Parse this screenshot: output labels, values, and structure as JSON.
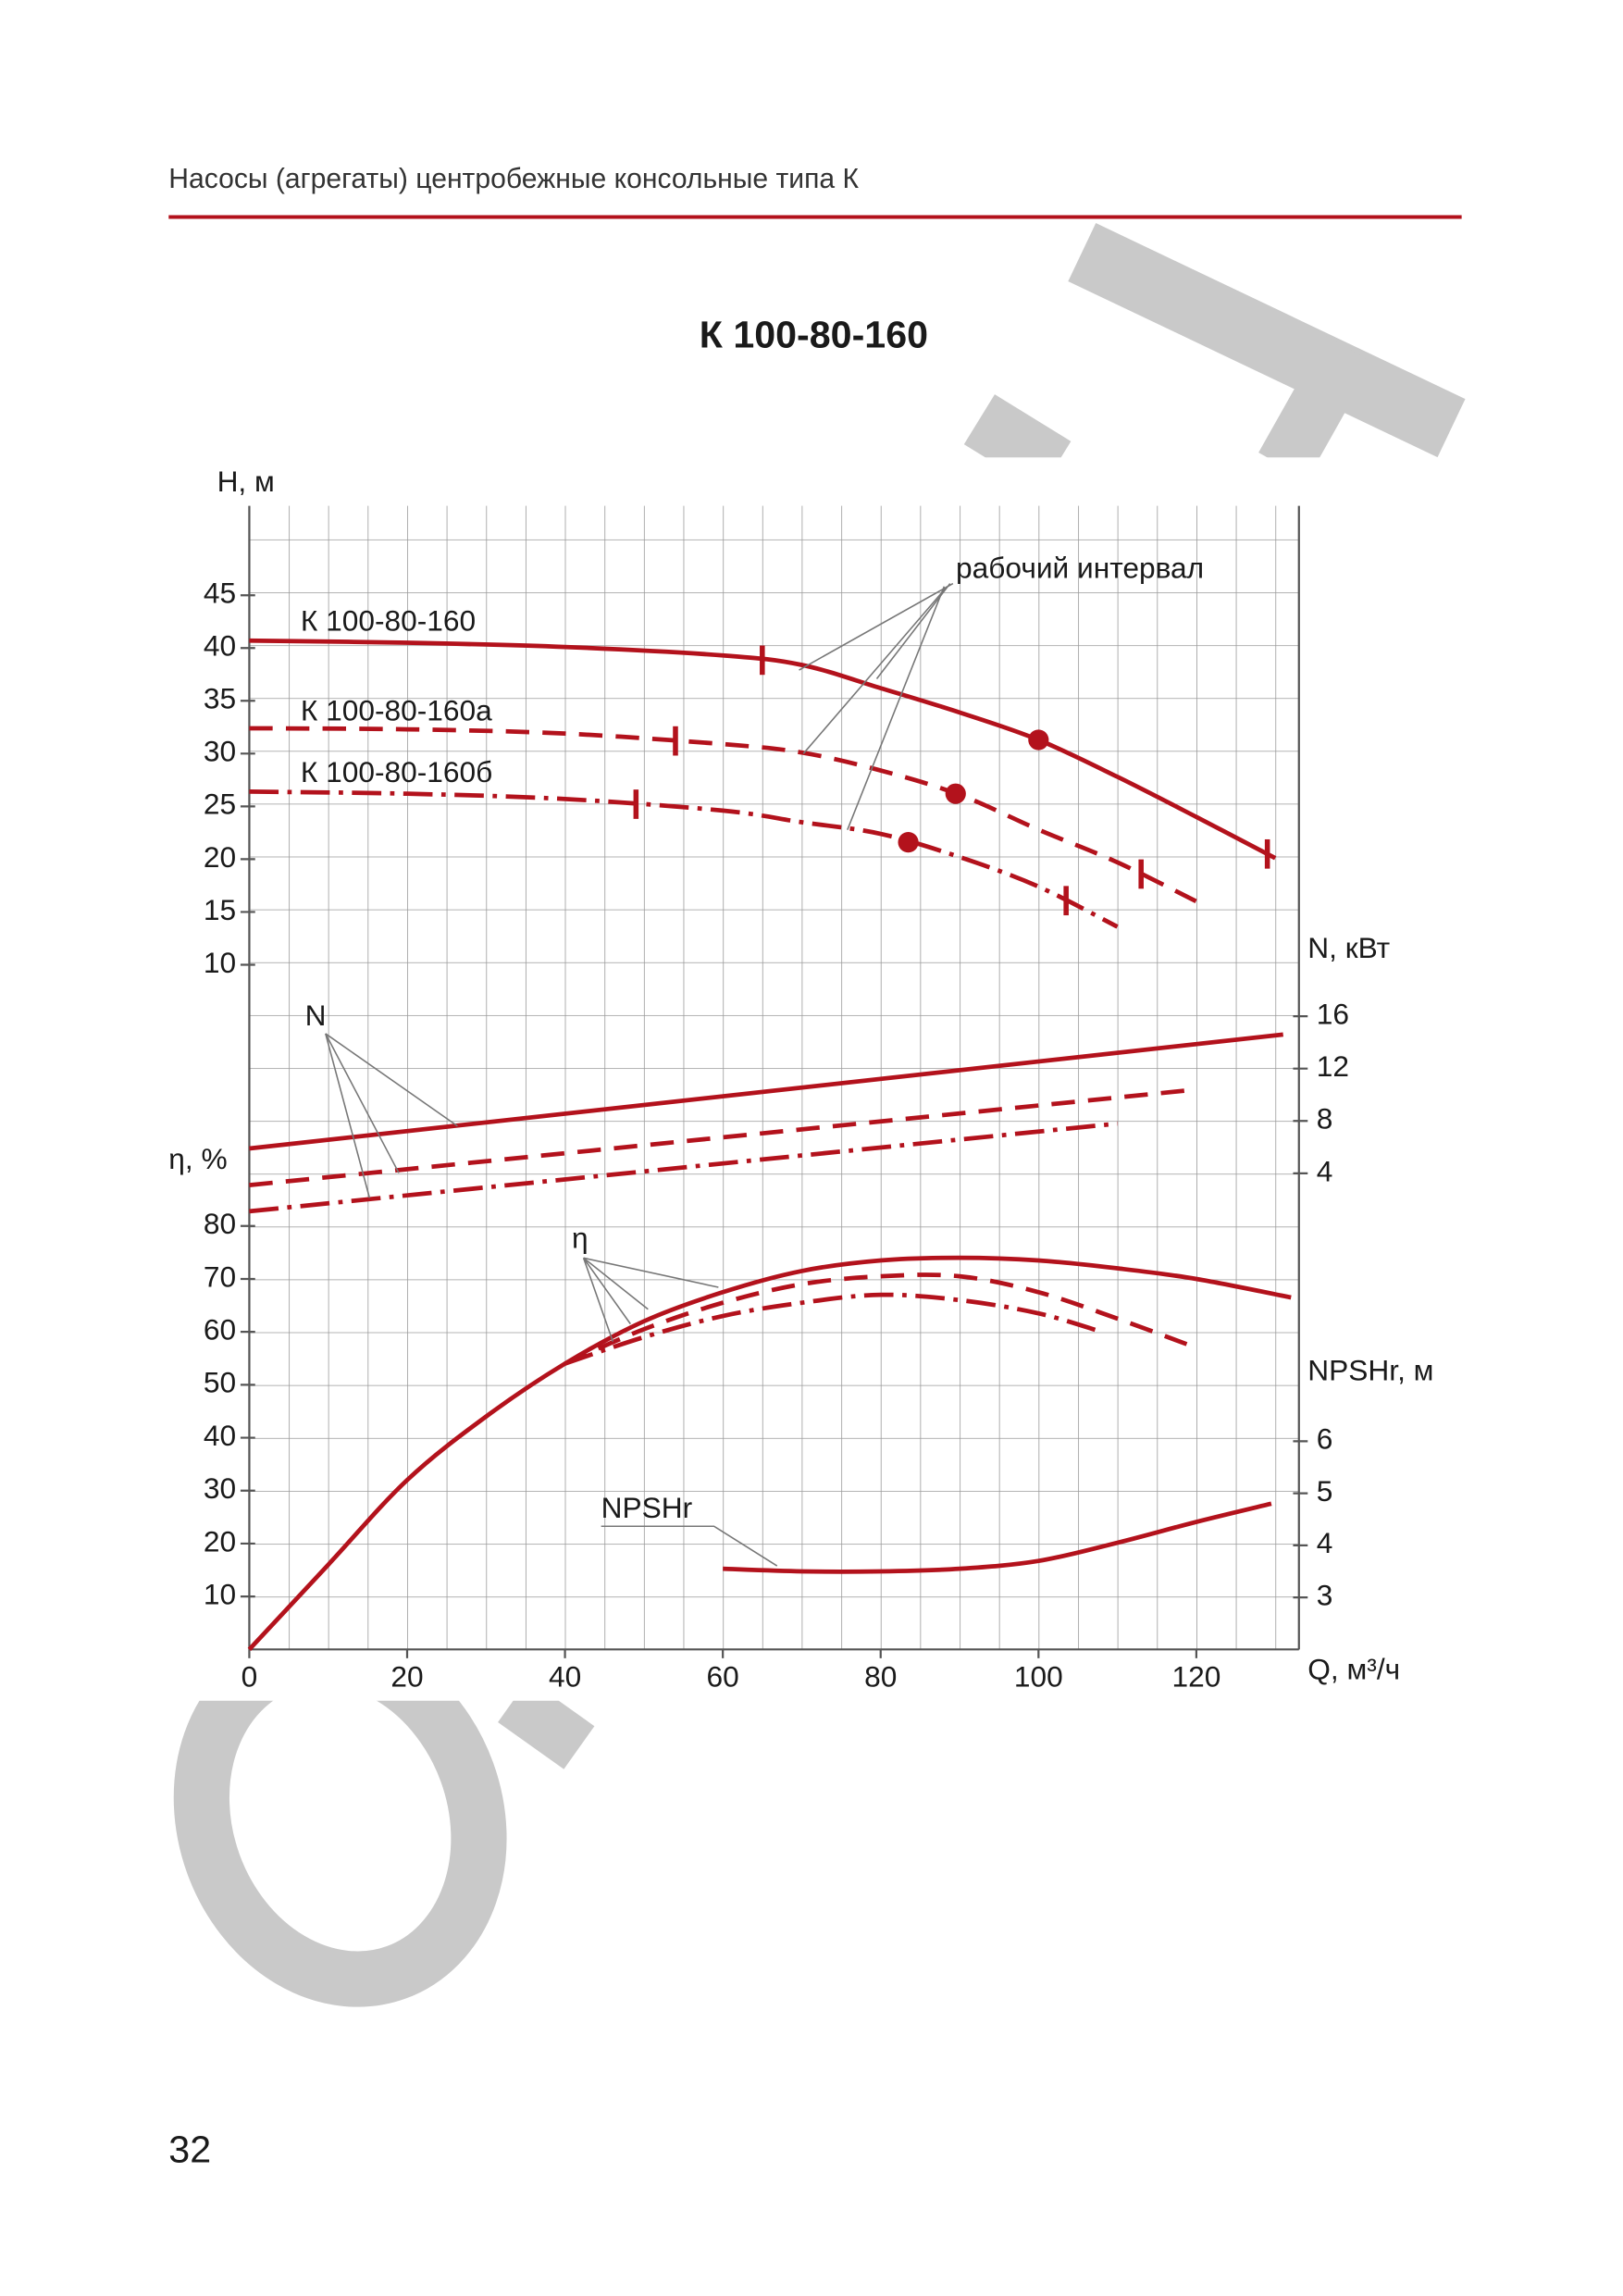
{
  "header": {
    "text": "Насосы (агрегаты) центробежные консольные типа К"
  },
  "title": "К 100-80-160",
  "page_number": "32",
  "chart_data": {
    "type": "line",
    "x_axis": {
      "title": "Q, м³/ч",
      "lim": [
        0,
        133
      ],
      "ticks": [
        0,
        20,
        40,
        60,
        80,
        100,
        120
      ]
    },
    "y_axes": {
      "H": {
        "title": "H, м",
        "lim": [
          0,
          50
        ],
        "ticks": [
          10,
          15,
          20,
          25,
          30,
          35,
          40,
          45
        ]
      },
      "N": {
        "title": "N, кВт",
        "lim": [
          0,
          20
        ],
        "ticks": [
          4,
          8,
          12,
          16
        ]
      },
      "eta": {
        "title": "η, %",
        "lim": [
          0,
          100
        ],
        "ticks": [
          10,
          20,
          30,
          40,
          50,
          60,
          70,
          80
        ]
      },
      "npsh": {
        "title": "NPSHr, м",
        "lim": [
          2,
          7
        ],
        "ticks": [
          3,
          4,
          5,
          6
        ]
      }
    },
    "series": [
      {
        "name": "К 100-80-160",
        "axis": "H",
        "color": "#b3121c",
        "dash": "solid",
        "x": [
          0,
          20,
          40,
          60,
          70,
          80,
          90,
          100,
          110,
          120,
          130
        ],
        "values": [
          40.7,
          40.5,
          40.1,
          39.3,
          38.4,
          36.2,
          33.9,
          31.3,
          27.8,
          24,
          20.1
        ],
        "work_interval": [
          65,
          129
        ],
        "bep": [
          100,
          31.3
        ]
      },
      {
        "name": "К 100-80-160а",
        "axis": "H",
        "color": "#b3121c",
        "dash": "dashed",
        "x": [
          0,
          20,
          40,
          60,
          70,
          80,
          90,
          100,
          110,
          120
        ],
        "values": [
          32.4,
          32.3,
          31.9,
          30.9,
          30.1,
          28.4,
          26.1,
          22.8,
          19.7,
          16
        ],
        "work_interval": [
          54,
          113
        ],
        "bep": [
          89.5,
          26.2
        ]
      },
      {
        "name": "К 100-80-160б",
        "axis": "H",
        "color": "#b3121c",
        "dash": "dashdot",
        "x": [
          0,
          20,
          40,
          60,
          70,
          80,
          90,
          100,
          110
        ],
        "values": [
          26.4,
          26.2,
          25.7,
          24.6,
          23.5,
          22.4,
          20.2,
          17.4,
          13.6
        ],
        "work_interval": [
          49,
          103.5
        ],
        "bep": [
          83.5,
          21.6
        ]
      },
      {
        "axis": "N",
        "color": "#b3121c",
        "dash": "solid",
        "x": [
          0,
          131
        ],
        "values": [
          5.9,
          14.6
        ]
      },
      {
        "axis": "N",
        "color": "#b3121c",
        "dash": "dashed",
        "x": [
          0,
          120
        ],
        "values": [
          3.1,
          10.4
        ]
      },
      {
        "axis": "N",
        "color": "#b3121c",
        "dash": "dashdot",
        "x": [
          0,
          110
        ],
        "values": [
          1.1,
          7.8
        ]
      },
      {
        "axis": "eta",
        "color": "#b3121c",
        "dash": "solid",
        "x": [
          0,
          10,
          20,
          30,
          40,
          50,
          60,
          70,
          80,
          90,
          100,
          110,
          120,
          132
        ],
        "values": [
          0,
          16,
          32,
          44,
          54,
          62,
          67.5,
          71.5,
          73.5,
          74,
          73.5,
          72,
          70,
          66.5
        ]
      },
      {
        "axis": "eta",
        "color": "#b3121c",
        "dash": "dashed",
        "x": [
          40,
          50,
          60,
          70,
          80,
          90,
          100,
          110,
          120
        ],
        "values": [
          54,
          60.5,
          65.5,
          69,
          70.5,
          70.5,
          67.5,
          62.5,
          57
        ]
      },
      {
        "axis": "eta",
        "color": "#b3121c",
        "dash": "dashdot",
        "x": [
          40,
          50,
          60,
          70,
          80,
          90,
          100,
          108
        ],
        "values": [
          54,
          59,
          63,
          65.5,
          67,
          66,
          63.5,
          60
        ]
      },
      {
        "name": "NPSHr",
        "axis": "npsh",
        "color": "#b3121c",
        "dash": "solid",
        "x": [
          60,
          70,
          80,
          90,
          100,
          110,
          120,
          129.5
        ],
        "values": [
          3.55,
          3.5,
          3.5,
          3.55,
          3.7,
          4.05,
          4.45,
          4.8
        ]
      }
    ],
    "annotations": [
      "рабочий интервал",
      "N",
      "η"
    ]
  }
}
